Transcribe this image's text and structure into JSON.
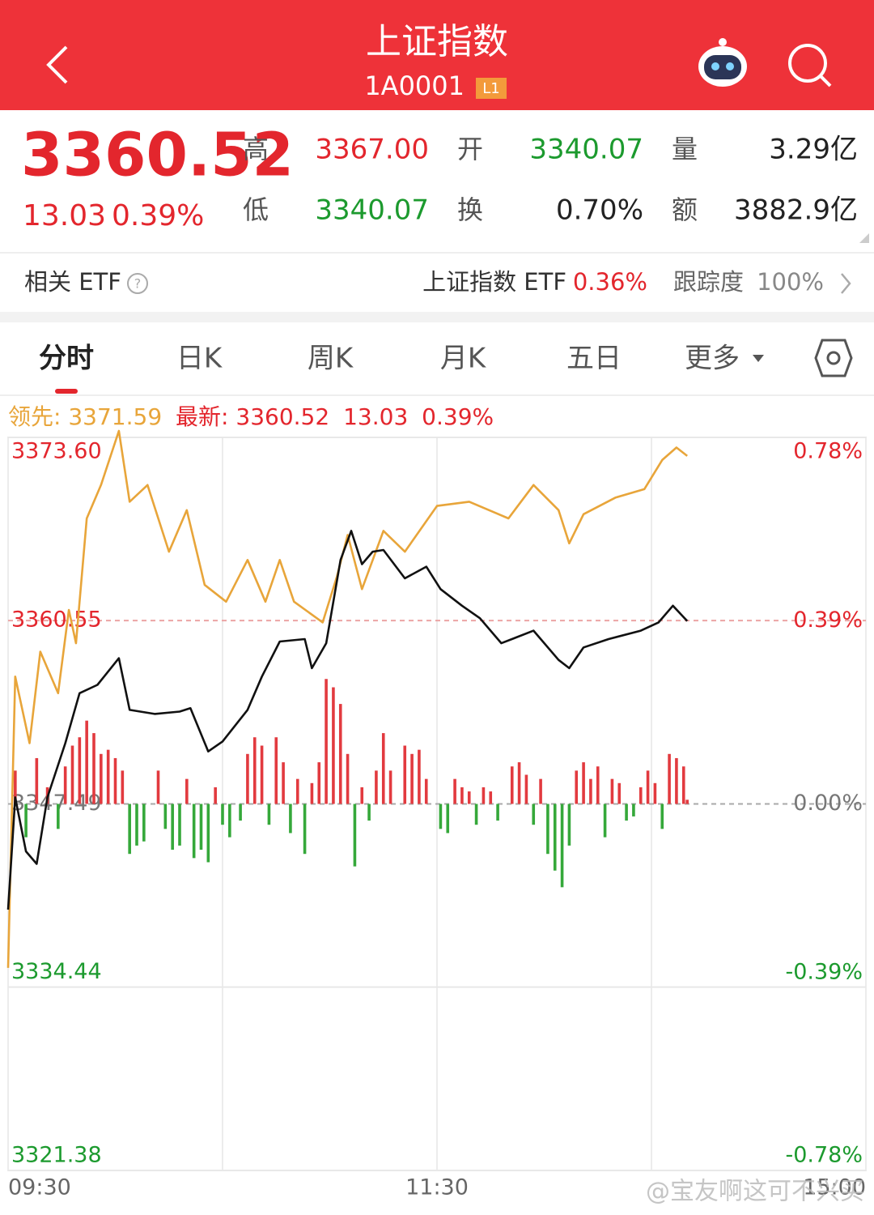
{
  "header": {
    "title": "上证指数",
    "code": "1A0001",
    "badge": "L1"
  },
  "quote": {
    "price": "3360.52",
    "change": "13.03",
    "change_pct": "0.39%",
    "stats": [
      {
        "label": "高",
        "value": "3367.00",
        "tone": "up"
      },
      {
        "label": "开",
        "value": "3340.07",
        "tone": "down"
      },
      {
        "label": "量",
        "value": "3.29亿",
        "tone": "flat"
      },
      {
        "label": "低",
        "value": "3340.07",
        "tone": "down"
      },
      {
        "label": "换",
        "value": "0.70%",
        "tone": "flat"
      },
      {
        "label": "额",
        "value": "3882.9亿",
        "tone": "flat"
      }
    ]
  },
  "etf": {
    "label": "相关 ETF",
    "name": "上证指数 ETF",
    "change": "0.36%",
    "tracking_label": "跟踪度",
    "tracking": "100%"
  },
  "tabs": [
    "分时",
    "日K",
    "周K",
    "月K",
    "五日",
    "更多"
  ],
  "active_tab": 0,
  "legend": {
    "lead_label": "领先:",
    "lead": "3371.59",
    "last_label": "最新:",
    "last": "3360.52",
    "change": "13.03",
    "change_pct": "0.39%"
  },
  "chart_data": {
    "type": "line",
    "xlim": [
      0,
      240
    ],
    "xticks": [
      {
        "value": 0,
        "label": "09:30"
      },
      {
        "value": 120,
        "label": "11:30"
      },
      {
        "value": 240,
        "label": "15:00"
      }
    ],
    "xgrid": [
      60,
      180
    ],
    "ylim": [
      3321.38,
      3373.6
    ],
    "yticks": [
      {
        "value": 3373.6,
        "label": "3373.60"
      },
      3360.55,
      3347.49,
      3334.44,
      3321.38
    ],
    "y2lim": [
      -0.78,
      0.78
    ],
    "y2ticks": [
      {
        "value": 0.78,
        "label": "0.78%"
      },
      {
        "value": 0.39,
        "label": "0.39%"
      },
      {
        "value": 0,
        "label": "0.00%"
      },
      {
        "value": -0.39,
        "label": "-0.39%"
      },
      {
        "value": -0.78,
        "label": "-0.78%"
      }
    ],
    "series": [
      {
        "color": "#e8a53a",
        "x": [
          0,
          2,
          6,
          9,
          14,
          17,
          19,
          22,
          26,
          31,
          34,
          39,
          45,
          50,
          55,
          61,
          67,
          72,
          76,
          80,
          88,
          92,
          95,
          99,
          105,
          111,
          120,
          129,
          140,
          147,
          154,
          157,
          161,
          170,
          178,
          183,
          187,
          190
        ],
        "values": [
          3335.81,
          3356.56,
          3351.82,
          3358.34,
          3355.38,
          3361.31,
          3358.94,
          3367.83,
          3370.21,
          3374.06,
          3369.02,
          3370.21,
          3365.46,
          3368.42,
          3363.09,
          3361.9,
          3364.87,
          3361.9,
          3364.87,
          3361.9,
          3360.42,
          3363.68,
          3366.65,
          3362.79,
          3366.94,
          3365.46,
          3368.72,
          3369.02,
          3367.83,
          3370.21,
          3368.42,
          3366.05,
          3368.13,
          3369.32,
          3369.91,
          3371.99,
          3372.88,
          3372.28
        ]
      },
      {
        "color": "#111111",
        "x": [
          0,
          2,
          5,
          8,
          11,
          16,
          20,
          25,
          31,
          34,
          41,
          48,
          51,
          56,
          60,
          67,
          71,
          76,
          83,
          85,
          89,
          93,
          96,
          99,
          102,
          105,
          111,
          117,
          121,
          127,
          132,
          138,
          147,
          154,
          157,
          161,
          168,
          177,
          182,
          186,
          190
        ],
        "values": [
          3339.96,
          3347.96,
          3344.11,
          3343.22,
          3347.96,
          3351.82,
          3355.38,
          3355.97,
          3357.87,
          3354.19,
          3353.9,
          3354.07,
          3354.31,
          3351.23,
          3351.94,
          3354.19,
          3356.56,
          3359.06,
          3359.23,
          3357.16,
          3358.94,
          3364.87,
          3366.94,
          3364.57,
          3365.46,
          3365.58,
          3363.56,
          3364.39,
          3362.79,
          3361.61,
          3360.72,
          3358.94,
          3359.83,
          3357.75,
          3357.16,
          3358.64,
          3359.23,
          3359.83,
          3360.42,
          3361.61,
          3360.52
        ]
      }
    ],
    "volume": {
      "type": "bar",
      "up_color": "#e23a3f",
      "down_color": "#35a83a",
      "ylim": [
        -440,
        440
      ],
      "x": [
        2,
        5,
        8,
        11,
        14,
        16,
        18,
        20,
        22,
        24,
        26,
        28,
        30,
        32,
        34,
        36,
        38,
        42,
        44,
        46,
        48,
        50,
        52,
        54,
        56,
        58,
        60,
        62,
        65,
        67,
        69,
        71,
        73,
        75,
        77,
        79,
        81,
        83,
        85,
        87,
        89,
        91,
        93,
        95,
        97,
        99,
        101,
        103,
        105,
        107,
        111,
        113,
        115,
        117,
        121,
        123,
        125,
        127,
        129,
        131,
        133,
        135,
        137,
        141,
        143,
        145,
        147,
        149,
        151,
        153,
        155,
        157,
        159,
        161,
        163,
        165,
        167,
        169,
        171,
        173,
        175,
        177,
        179,
        181,
        183,
        185,
        187,
        189,
        190
      ],
      "values": [
        40,
        -40,
        55,
        20,
        -30,
        45,
        70,
        80,
        100,
        85,
        60,
        65,
        55,
        40,
        -60,
        -50,
        -45,
        40,
        -30,
        -55,
        -50,
        30,
        -65,
        -55,
        -70,
        20,
        -25,
        -40,
        -20,
        60,
        80,
        70,
        -25,
        80,
        50,
        -35,
        30,
        -60,
        25,
        50,
        150,
        140,
        120,
        60,
        -75,
        20,
        -20,
        40,
        85,
        40,
        70,
        60,
        65,
        30,
        -30,
        -35,
        30,
        20,
        15,
        -25,
        20,
        15,
        -20,
        45,
        50,
        35,
        -25,
        30,
        -60,
        -80,
        -100,
        -50,
        40,
        50,
        30,
        45,
        -40,
        30,
        25,
        -20,
        -15,
        20,
        40,
        25,
        -30,
        60,
        55,
        45,
        5
      ]
    }
  },
  "watermark": "@宝友啊这可不兴买"
}
